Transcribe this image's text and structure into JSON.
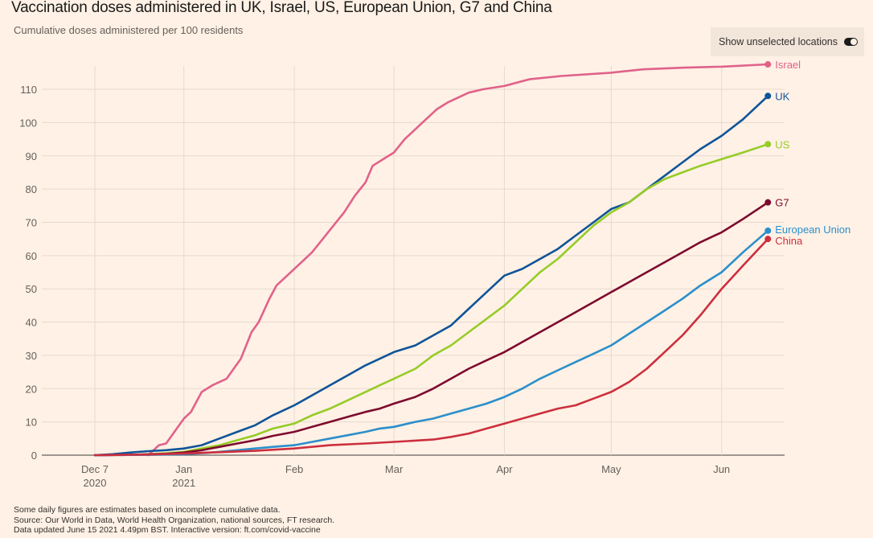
{
  "header": {
    "title": "Vaccination doses administered in UK, Israel, US, European Union, G7 and China",
    "subtitle": "Cumulative doses administered per 100 residents"
  },
  "toggle": {
    "label": "Show unselected locations",
    "state": "on"
  },
  "footer": {
    "lines": [
      "Some daily figures are estimates based on incomplete cumulative data.",
      "Source: Our World in Data, World Health Organization, national sources, FT research.",
      "Data updated June 15 2021 4.49pm BST. Interactive version: ft.com/covid-vaccine"
    ]
  },
  "chart_data": {
    "type": "line",
    "title": "Vaccination doses administered in UK, Israel, US, European Union, G7 and China",
    "subtitle": "Cumulative doses administered per 100 residents",
    "xlabel": "",
    "ylabel": "Cumulative doses per 100 residents",
    "x_unit": "days since 2020-12-07",
    "xlim": [
      -12,
      195
    ],
    "ylim": [
      0,
      118
    ],
    "grid": true,
    "legend": "direct-labels-right",
    "y_ticks": [
      0,
      10,
      20,
      30,
      40,
      50,
      60,
      70,
      80,
      90,
      100,
      110
    ],
    "x_ticks": [
      {
        "day": 0,
        "label": "Dec 7",
        "sublabel": "2020"
      },
      {
        "day": 25,
        "label": "Jan",
        "sublabel": "2021"
      },
      {
        "day": 56,
        "label": "Feb",
        "sublabel": ""
      },
      {
        "day": 84,
        "label": "Mar",
        "sublabel": ""
      },
      {
        "day": 115,
        "label": "Apr",
        "sublabel": ""
      },
      {
        "day": 145,
        "label": "May",
        "sublabel": ""
      },
      {
        "day": 176,
        "label": "Jun",
        "sublabel": ""
      }
    ],
    "series": [
      {
        "name": "Israel",
        "color": "#e0628a",
        "x": [
          15,
          18,
          20,
          25,
          27,
          30,
          33,
          37,
          41,
          44,
          46,
          49,
          51,
          54,
          56,
          59,
          61,
          64,
          67,
          70,
          73,
          76,
          78,
          81,
          84,
          87,
          90,
          93,
          96,
          99,
          101,
          105,
          109,
          115,
          122,
          131,
          145,
          154,
          165,
          176,
          189
        ],
        "y": [
          0,
          3,
          3.5,
          11,
          13,
          19,
          21,
          23,
          29,
          37,
          40,
          47,
          51,
          54,
          56,
          59,
          61,
          65,
          69,
          73,
          78,
          82,
          87,
          89,
          91,
          95,
          98,
          101,
          104,
          106,
          107,
          109,
          110,
          111,
          113,
          114,
          115,
          116,
          116.5,
          116.8,
          117.5
        ]
      },
      {
        "name": "UK",
        "color": "#0f5499",
        "x": [
          0,
          5,
          10,
          15,
          20,
          25,
          30,
          35,
          40,
          45,
          50,
          56,
          61,
          66,
          71,
          76,
          80,
          84,
          90,
          95,
          100,
          105,
          110,
          115,
          120,
          125,
          130,
          135,
          140,
          145,
          150,
          155,
          160,
          165,
          170,
          176,
          182,
          189
        ],
        "y": [
          0,
          0.3,
          0.8,
          1.2,
          1.5,
          2,
          3,
          5,
          7,
          9,
          12,
          15,
          18,
          21,
          24,
          27,
          29,
          31,
          33,
          36,
          39,
          44,
          49,
          54,
          56,
          59,
          62,
          66,
          70,
          74,
          76,
          80,
          84,
          88,
          92,
          96,
          101,
          108
        ]
      },
      {
        "name": "US",
        "color": "#96cc28",
        "x": [
          7,
          15,
          20,
          25,
          30,
          35,
          40,
          45,
          50,
          56,
          61,
          66,
          71,
          76,
          80,
          84,
          90,
          95,
          100,
          105,
          110,
          115,
          120,
          125,
          130,
          135,
          140,
          145,
          150,
          155,
          160,
          165,
          170,
          176,
          182,
          189
        ],
        "y": [
          0,
          0.3,
          0.6,
          1,
          2,
          3,
          4.5,
          6,
          8,
          9.5,
          12,
          14,
          16.5,
          19,
          21,
          23,
          26,
          30,
          33,
          37,
          41,
          45,
          50,
          55,
          59,
          64,
          69,
          73,
          76,
          80,
          83,
          85,
          87,
          89,
          91,
          93.5
        ]
      },
      {
        "name": "G7",
        "color": "#7d0a2e",
        "x": [
          0,
          10,
          20,
          25,
          30,
          35,
          40,
          45,
          50,
          56,
          61,
          66,
          71,
          76,
          80,
          84,
          90,
          95,
          100,
          105,
          110,
          115,
          120,
          125,
          130,
          135,
          140,
          145,
          150,
          155,
          160,
          165,
          170,
          176,
          182,
          189
        ],
        "y": [
          0,
          0.1,
          0.4,
          0.8,
          1.5,
          2.5,
          3.5,
          4.5,
          5.8,
          7,
          8.5,
          10,
          11.5,
          13,
          14,
          15.5,
          17.5,
          20,
          23,
          26,
          28.5,
          31,
          34,
          37,
          40,
          43,
          46,
          49,
          52,
          55,
          58,
          61,
          64,
          67,
          71,
          76
        ]
      },
      {
        "name": "European Union",
        "color": "#2b8fcb",
        "x": [
          0,
          15,
          25,
          30,
          35,
          40,
          45,
          50,
          56,
          61,
          66,
          71,
          76,
          80,
          84,
          90,
          95,
          100,
          105,
          110,
          115,
          120,
          125,
          130,
          135,
          140,
          145,
          150,
          155,
          160,
          165,
          170,
          176,
          182,
          189
        ],
        "y": [
          0,
          0.1,
          0.3,
          0.6,
          1,
          1.5,
          2,
          2.5,
          3,
          4,
          5,
          6,
          7,
          8,
          8.5,
          10,
          11,
          12.5,
          14,
          15.5,
          17.5,
          20,
          23,
          25.5,
          28,
          30.5,
          33,
          36.5,
          40,
          43.5,
          47,
          51,
          55,
          61,
          67.5
        ]
      },
      {
        "name": "China",
        "color": "#cc2f3e",
        "x": [
          0,
          15,
          25,
          35,
          45,
          56,
          66,
          76,
          84,
          95,
          100,
          105,
          110,
          115,
          120,
          125,
          130,
          135,
          140,
          145,
          150,
          155,
          160,
          165,
          170,
          176,
          182,
          189
        ],
        "y": [
          0,
          0.2,
          0.5,
          0.9,
          1.3,
          2,
          3,
          3.5,
          4,
          4.7,
          5.5,
          6.5,
          8,
          9.5,
          11,
          12.5,
          14,
          15,
          17,
          19,
          22,
          26,
          31,
          36,
          42,
          50,
          57,
          65
        ]
      }
    ]
  }
}
